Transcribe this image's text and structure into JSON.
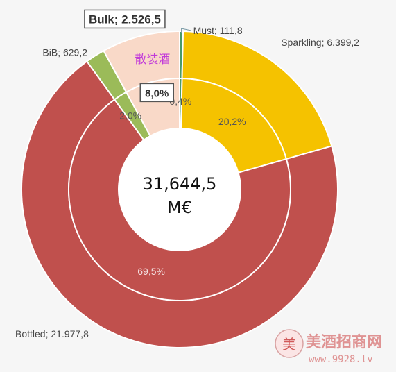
{
  "chart_data": {
    "type": "pie",
    "subtype": "donut",
    "total_label_line1": "31,644,5",
    "total_label_line2": "M€",
    "start": "top, clockwise",
    "colors": {
      "Must": "#4a9a6a",
      "Sparkling": "#f5c200",
      "Bottled": "#c0504d",
      "BiB": "#9bbb59",
      "Bulk": "#f9d9c8"
    },
    "slices": [
      {
        "name": "Must",
        "value": 111.8,
        "label": "Must; 111,8",
        "pct_label": "0,4%"
      },
      {
        "name": "Sparkling",
        "value": 6399.2,
        "label": "Sparkling; 6.399,2",
        "pct_label": "20,2%"
      },
      {
        "name": "Bottled",
        "value": 21977.8,
        "label": "Bottled; 21.977,8",
        "pct_label": "69,5%"
      },
      {
        "name": "BiB",
        "value": 629.2,
        "label": "BiB; 629,2",
        "pct_label": "2,0%"
      },
      {
        "name": "Bulk",
        "value": 2526.5,
        "label": "Bulk; 2.526,5",
        "pct_label": "8,0%",
        "annotation": "散装酒"
      }
    ]
  },
  "watermark": {
    "text": "美酒招商网",
    "url": "www.9928.tv"
  }
}
